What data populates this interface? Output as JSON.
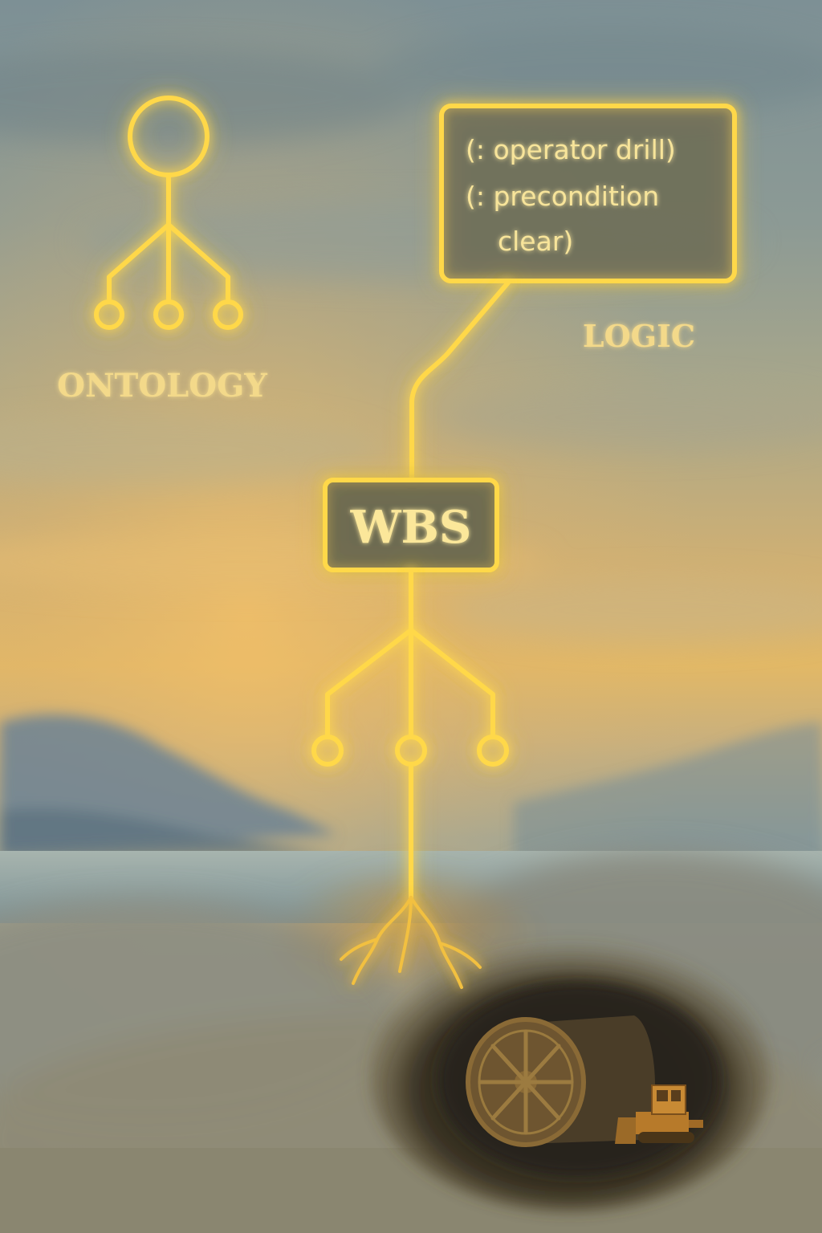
{
  "ontology": {
    "label": "ONTOLOGY",
    "icon": "person-tree-icon"
  },
  "logic": {
    "label": "LOGIC",
    "code_lines": [
      "(: operator drill)",
      "(: precondition",
      "clear)"
    ]
  },
  "wbs": {
    "label": "WBS",
    "icon": "hierarchy-tree-icon"
  },
  "scene": {
    "tunnel_icon": "tunnel-boring-machine-icon",
    "vehicle_icon": "bulldozer-icon"
  },
  "colors": {
    "glow": "#ffd84a",
    "glow_core": "#fff2a8",
    "label_text": "#f3d98a",
    "box_fill": "#6b6a52",
    "sky_top": "#7f9196",
    "sky_mid": "#c8ad78",
    "sky_warm": "#e8b865",
    "water": "#8fa3a6",
    "mountains": "#6f8595",
    "fog": "#8c8d80",
    "tunnel_dark": "#2e2a22",
    "machine": "#7a5e2e",
    "bulldozer": "#c7882e"
  }
}
